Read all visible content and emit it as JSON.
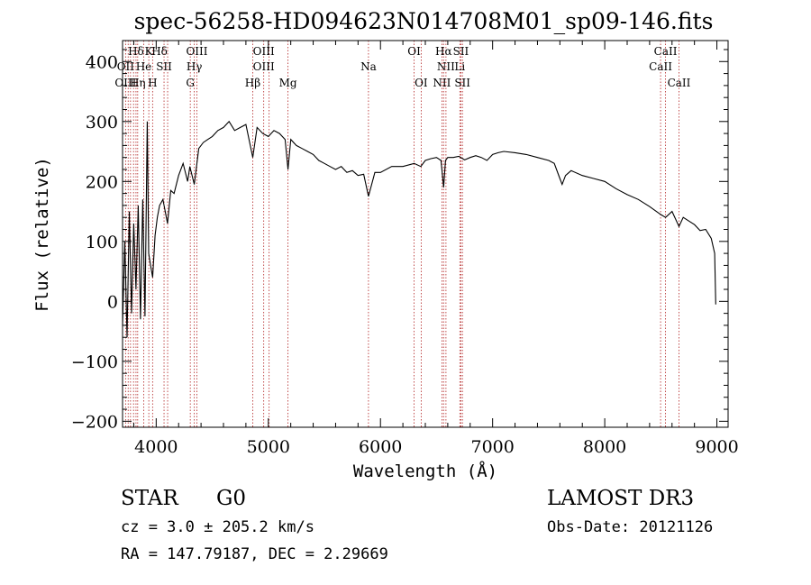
{
  "chart_data": {
    "type": "line",
    "title": "spec-56258-HD094623N014708M01_sp09-146.fits",
    "xlabel": "Wavelength (Å)",
    "ylabel": "Flux (relative)",
    "xlim": [
      3700,
      9100
    ],
    "ylim": [
      -210,
      435
    ],
    "xticks": [
      4000,
      5000,
      6000,
      7000,
      8000,
      9000
    ],
    "yticks": [
      -200,
      -100,
      0,
      100,
      200,
      300,
      400
    ],
    "grid": false,
    "line_color": "#000000",
    "marker_color": "#b22222",
    "series": [
      {
        "x": [
          3700,
          3720,
          3740,
          3760,
          3780,
          3800,
          3820,
          3840,
          3860,
          3880,
          3900,
          3920,
          3933,
          3950,
          3968,
          3990,
          4010,
          4030,
          4060,
          4101,
          4130,
          4160,
          4200,
          4240,
          4280,
          4300,
          4340,
          4380,
          4420,
          4460,
          4500,
          4550,
          4600,
          4650,
          4700,
          4750,
          4800,
          4861,
          4900,
          4950,
          5000,
          5050,
          5100,
          5150,
          5175,
          5200,
          5250,
          5300,
          5350,
          5400,
          5450,
          5500,
          5550,
          5600,
          5650,
          5700,
          5750,
          5800,
          5850,
          5893,
          5950,
          6000,
          6100,
          6200,
          6300,
          6360,
          6400,
          6450,
          6500,
          6540,
          6563,
          6580,
          6600,
          6650,
          6700,
          6750,
          6800,
          6850,
          6900,
          6950,
          7000,
          7050,
          7100,
          7200,
          7300,
          7400,
          7500,
          7550,
          7600,
          7620,
          7650,
          7700,
          7800,
          7900,
          8000,
          8100,
          8200,
          8300,
          8400,
          8498,
          8542,
          8600,
          8662,
          8700,
          8800,
          8850,
          8900,
          8950,
          8980,
          8990
        ],
        "y": [
          -40,
          100,
          -60,
          150,
          -20,
          130,
          20,
          160,
          -30,
          170,
          -25,
          300,
          80,
          60,
          40,
          110,
          140,
          160,
          170,
          130,
          185,
          180,
          210,
          230,
          200,
          225,
          195,
          255,
          265,
          270,
          275,
          285,
          290,
          300,
          285,
          290,
          295,
          240,
          290,
          280,
          275,
          285,
          280,
          270,
          220,
          270,
          260,
          255,
          250,
          245,
          235,
          230,
          225,
          220,
          225,
          215,
          218,
          210,
          212,
          175,
          215,
          215,
          225,
          225,
          230,
          225,
          235,
          238,
          240,
          235,
          190,
          235,
          240,
          240,
          242,
          236,
          240,
          243,
          240,
          235,
          245,
          248,
          250,
          248,
          245,
          240,
          235,
          230,
          205,
          195,
          210,
          218,
          210,
          205,
          200,
          188,
          178,
          170,
          158,
          145,
          140,
          150,
          125,
          140,
          128,
          118,
          120,
          105,
          80,
          -5
        ]
      }
    ],
    "line_markers": [
      {
        "label": "Hδ",
        "x": 3820,
        "row": 1,
        "align": "middle"
      },
      {
        "label": "K",
        "x": 3934,
        "row": 1,
        "align": "middle"
      },
      {
        "label": "Hδ",
        "x": 4030,
        "row": 1,
        "align": "middle"
      },
      {
        "label": "OIII",
        "x": 4363,
        "row": 1,
        "align": "middle"
      },
      {
        "label": "OIII",
        "x": 4959,
        "row": 1,
        "align": "middle"
      },
      {
        "label": "OI",
        "x": 6300,
        "row": 1,
        "align": "middle"
      },
      {
        "label": "Hα",
        "x": 6563,
        "row": 1,
        "align": "middle"
      },
      {
        "label": "SII",
        "x": 6717,
        "row": 1,
        "align": "middle"
      },
      {
        "label": "CaII",
        "x": 8542,
        "row": 1,
        "align": "middle"
      },
      {
        "label": "OII",
        "x": 3727,
        "row": 2,
        "align": "middle"
      },
      {
        "label": "He",
        "x": 3889,
        "row": 2,
        "align": "middle"
      },
      {
        "label": "SII",
        "x": 4070,
        "row": 2,
        "align": "middle"
      },
      {
        "label": "Hγ",
        "x": 4340,
        "row": 2,
        "align": "middle"
      },
      {
        "label": "OIII",
        "x": 4959,
        "row": 2,
        "align": "middle"
      },
      {
        "label": "Na",
        "x": 5893,
        "row": 2,
        "align": "middle"
      },
      {
        "label": "NII",
        "x": 6584,
        "row": 2,
        "align": "middle"
      },
      {
        "label": "Li",
        "x": 6708,
        "row": 2,
        "align": "middle"
      },
      {
        "label": "CaII",
        "x": 8498,
        "row": 2,
        "align": "middle"
      },
      {
        "label": "OIII",
        "x": 3727,
        "row": 3,
        "align": "middle"
      },
      {
        "label": "Hη",
        "x": 3835,
        "row": 3,
        "align": "middle"
      },
      {
        "label": "H",
        "x": 3968,
        "row": 3,
        "align": "middle"
      },
      {
        "label": "G",
        "x": 4304,
        "row": 3,
        "align": "middle"
      },
      {
        "label": "Hβ",
        "x": 4861,
        "row": 3,
        "align": "middle"
      },
      {
        "label": "Mg",
        "x": 5175,
        "row": 3,
        "align": "middle"
      },
      {
        "label": "OI",
        "x": 6363,
        "row": 3,
        "align": "middle"
      },
      {
        "label": "NII",
        "x": 6548,
        "row": 3,
        "align": "middle"
      },
      {
        "label": "SII",
        "x": 6731,
        "row": 3,
        "align": "middle"
      },
      {
        "label": "CaII",
        "x": 8662,
        "row": 3,
        "align": "middle"
      }
    ],
    "marker_lines_x": [
      3727,
      3750,
      3771,
      3798,
      3820,
      3835,
      3889,
      3934,
      3968,
      4070,
      4102,
      4304,
      4340,
      4363,
      4861,
      4959,
      5007,
      5175,
      5893,
      6300,
      6363,
      6548,
      6563,
      6584,
      6708,
      6717,
      6731,
      8498,
      8542,
      8662
    ]
  },
  "info": {
    "object_class": "STAR",
    "subclass": "G0",
    "survey": "LAMOST DR3",
    "redshift": "cz = 3.0 ± 205.2 km/s",
    "obs_date": "Obs-Date: 20121126",
    "coords": "RA = 147.79187, DEC =    2.29669"
  }
}
